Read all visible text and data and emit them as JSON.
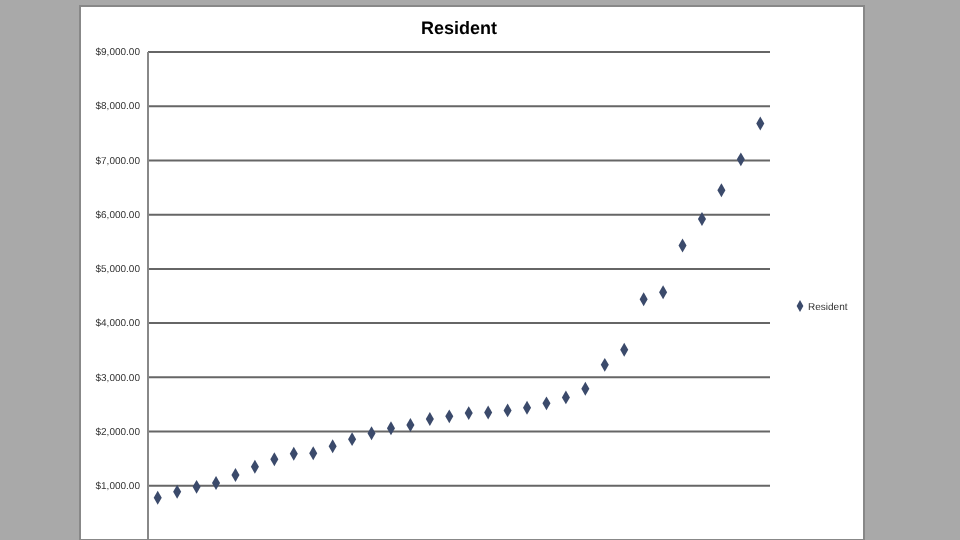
{
  "chart_data": {
    "type": "scatter",
    "title": "Resident",
    "categories": [
      null,
      null,
      null,
      null,
      null,
      null,
      null,
      null,
      null,
      null,
      null,
      null,
      null,
      null,
      null,
      null,
      null,
      null,
      null,
      null,
      null,
      null,
      null,
      null,
      null,
      null,
      null,
      null,
      null,
      null,
      null,
      null
    ],
    "series": [
      {
        "name": "Resident",
        "color": "#3b4a6b",
        "values": [
          780,
          890,
          980,
          1050,
          1200,
          1350,
          1490,
          1590,
          1600,
          1730,
          1860,
          1970,
          2060,
          2120,
          2230,
          2280,
          2340,
          2350,
          2390,
          2440,
          2520,
          2630,
          2790,
          3230,
          3510,
          4440,
          4570,
          5430,
          5920,
          6450,
          7020,
          7680
        ]
      }
    ],
    "ylim": [
      0,
      9000
    ],
    "yticks": [
      {
        "value": 1000,
        "label": "$1,000.00"
      },
      {
        "value": 2000,
        "label": "$2,000.00"
      },
      {
        "value": 3000,
        "label": "$3,000.00"
      },
      {
        "value": 4000,
        "label": "$4,000.00"
      },
      {
        "value": 5000,
        "label": "$5,000.00"
      },
      {
        "value": 6000,
        "label": "$6,000.00"
      },
      {
        "value": 7000,
        "label": "$7,000.00"
      },
      {
        "value": 8000,
        "label": "$8,000.00"
      },
      {
        "value": 9000,
        "label": "$9,000.00"
      }
    ],
    "grid": "y",
    "legend": "right",
    "marker": "diamond"
  }
}
